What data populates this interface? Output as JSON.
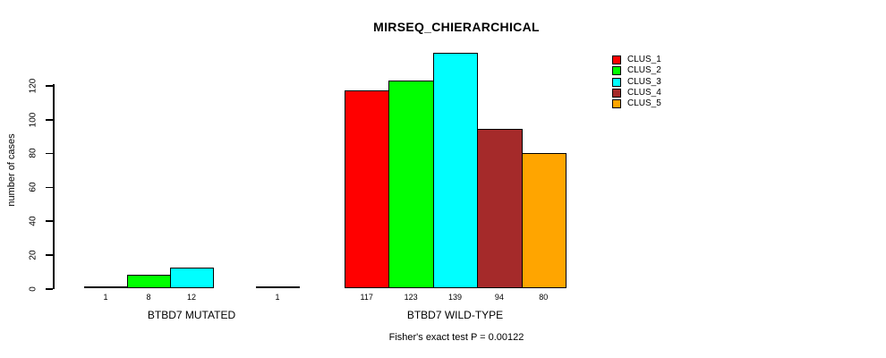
{
  "chart_data": {
    "type": "bar",
    "title": "MIRSEQ_CHIERARCHICAL",
    "ylabel": "number of cases",
    "xlabel": "",
    "footer": "Fisher's exact test P = 0.00122",
    "ylim": [
      0,
      139
    ],
    "yticks": [
      0,
      20,
      40,
      60,
      80,
      100,
      120
    ],
    "grid": false,
    "legend_position": "top-right",
    "series": [
      {
        "name": "CLUS_1",
        "color": "#FF0000"
      },
      {
        "name": "CLUS_2",
        "color": "#00FF00"
      },
      {
        "name": "CLUS_3",
        "color": "#00FFFF"
      },
      {
        "name": "CLUS_4",
        "color": "#A52A2A"
      },
      {
        "name": "CLUS_5",
        "color": "#FFA500"
      }
    ],
    "groups": [
      {
        "label": "BTBD7 MUTATED",
        "values": [
          1,
          8,
          12,
          null,
          1
        ]
      },
      {
        "label": "BTBD7 WILD-TYPE",
        "values": [
          117,
          123,
          139,
          94,
          80
        ]
      }
    ]
  }
}
